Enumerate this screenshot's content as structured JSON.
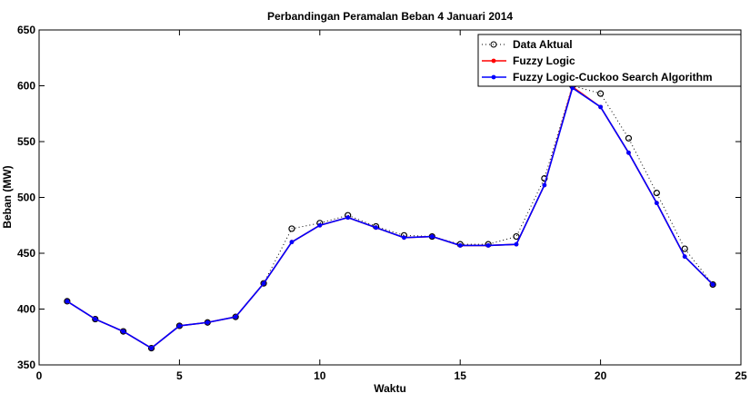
{
  "chart_data": {
    "type": "line",
    "title": "Perbandingan Peramalan Beban 4 Januari 2014",
    "xlabel": "Waktu",
    "ylabel": "Beban (MW)",
    "xlim": [
      0,
      25
    ],
    "ylim": [
      350,
      650
    ],
    "xticks": [
      0,
      5,
      10,
      15,
      20,
      25
    ],
    "yticks": [
      350,
      400,
      450,
      500,
      550,
      600,
      650
    ],
    "legend_position": "top-right",
    "x": [
      1,
      2,
      3,
      4,
      5,
      6,
      7,
      8,
      9,
      10,
      11,
      12,
      13,
      14,
      15,
      16,
      17,
      18,
      19,
      20,
      21,
      22,
      23,
      24
    ],
    "series": [
      {
        "name": "Data Aktual",
        "color": "#000000",
        "style": "dotted",
        "marker": "circle",
        "values": [
          407,
          391,
          380,
          365,
          385,
          388,
          393,
          423,
          472,
          477,
          484,
          474,
          466,
          465,
          458,
          458,
          465,
          517,
          600,
          593,
          553,
          504,
          454,
          422
        ]
      },
      {
        "name": "Fuzzy Logic",
        "color": "#ff0000",
        "style": "solid",
        "marker": "dot",
        "values": [
          407,
          391,
          380,
          365,
          385,
          388,
          393,
          423,
          460,
          475,
          482,
          473,
          464,
          465,
          457,
          457,
          458,
          511,
          599,
          581,
          540,
          495,
          447,
          422
        ]
      },
      {
        "name": "Fuzzy Logic-Cuckoo Search Algorithm",
        "color": "#0000ff",
        "style": "solid",
        "marker": "dot",
        "values": [
          407,
          391,
          380,
          365,
          385,
          388,
          393,
          423,
          460,
          475,
          482,
          473,
          464,
          465,
          457,
          457,
          458,
          511,
          598,
          581,
          540,
          495,
          447,
          422
        ]
      }
    ]
  }
}
